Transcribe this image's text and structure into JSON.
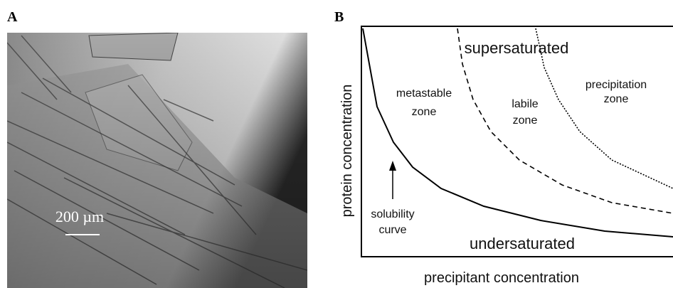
{
  "panel_a": {
    "label": "A",
    "scale_bar": "200 µm"
  },
  "panel_b": {
    "label": "B",
    "x_axis_label": "precipitant concentration",
    "y_axis_label": "protein concentration",
    "regions": {
      "supersaturated": "supersaturated",
      "undersaturated": "undersaturated",
      "metastable": [
        "metastable",
        "zone"
      ],
      "labile": [
        "labile",
        "zone"
      ],
      "precipitation": [
        "precipitation",
        "zone"
      ]
    },
    "solubility_label": [
      "solubility",
      "curve"
    ]
  }
}
